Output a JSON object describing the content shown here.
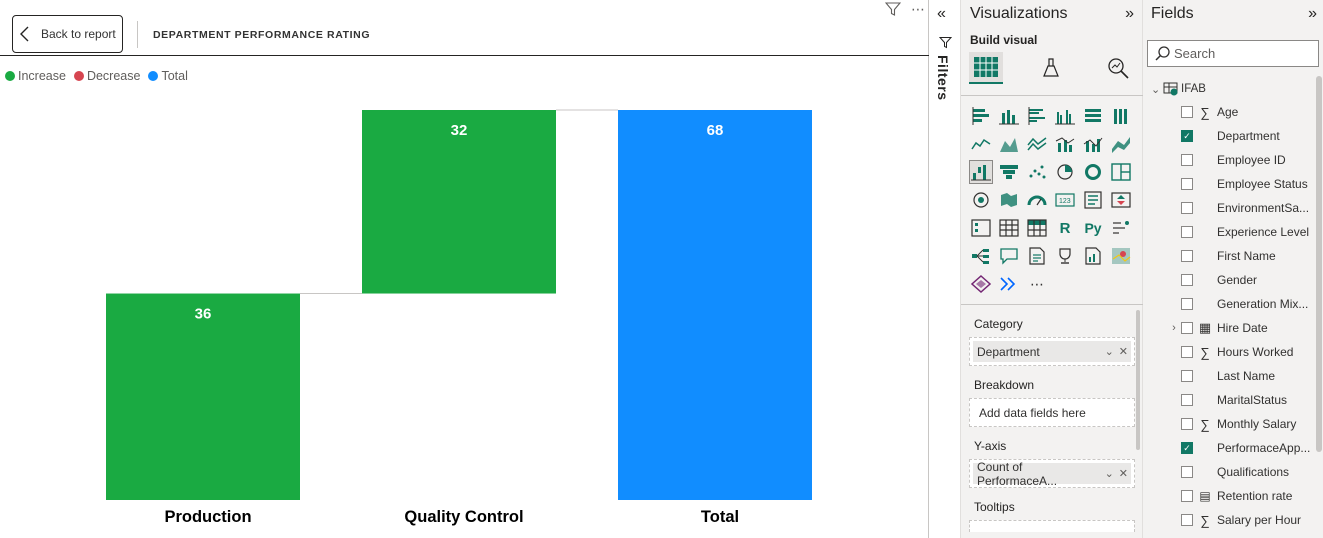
{
  "report": {
    "back_label": "Back to report",
    "visual_title": "DEPARTMENT PERFORMANCE RATING",
    "filter_icon": "funnel-icon",
    "more_icon": "ellipsis-icon"
  },
  "legend": [
    {
      "label": "Increase",
      "color": "#1aaa42"
    },
    {
      "label": "Decrease",
      "color": "#d64550"
    },
    {
      "label": "Total",
      "color": "#118dff"
    }
  ],
  "chart_data": {
    "type": "bar",
    "categories": [
      "Production",
      "Quality Control",
      "Total"
    ],
    "values": [
      36,
      32,
      68
    ],
    "kinds": [
      "increase",
      "increase",
      "total"
    ],
    "ylim": [
      0,
      68
    ]
  },
  "filters_pane": {
    "label": "Filters",
    "collapse_icon": "double-chevron-left-icon"
  },
  "visualizations": {
    "title": "Visualizations",
    "expand_icon": "double-chevron-right-icon",
    "build_label": "Build visual",
    "more_icon": "ellipsis-icon",
    "wells": [
      {
        "label": "Category",
        "field": "Department"
      },
      {
        "label": "Breakdown",
        "placeholder": "Add data fields here"
      },
      {
        "label": "Y-axis",
        "field": "Count of PerformaceA..."
      },
      {
        "label": "Tooltips"
      }
    ]
  },
  "fields_pane": {
    "title": "Fields",
    "expand_icon": "double-chevron-right-icon",
    "search_placeholder": "Search",
    "table": "IFAB",
    "items": [
      {
        "name": "Age",
        "sigma": true,
        "checked": false
      },
      {
        "name": "Department",
        "sigma": false,
        "checked": true
      },
      {
        "name": "Employee ID",
        "sigma": false,
        "checked": false
      },
      {
        "name": "Employee Status",
        "sigma": false,
        "checked": false
      },
      {
        "name": "EnvironmentSa...",
        "sigma": false,
        "checked": false
      },
      {
        "name": "Experience Level",
        "sigma": false,
        "checked": false
      },
      {
        "name": "First Name",
        "sigma": false,
        "checked": false
      },
      {
        "name": "Gender",
        "sigma": false,
        "checked": false
      },
      {
        "name": "Generation Mix...",
        "sigma": false,
        "checked": false
      },
      {
        "name": "Hire Date",
        "sigma": false,
        "checked": false,
        "calendar": true,
        "expandable": true
      },
      {
        "name": "Hours Worked",
        "sigma": true,
        "checked": false
      },
      {
        "name": "Last Name",
        "sigma": false,
        "checked": false
      },
      {
        "name": "MaritalStatus",
        "sigma": false,
        "checked": false
      },
      {
        "name": "Monthly Salary",
        "sigma": true,
        "checked": false
      },
      {
        "name": "PerformaceApp...",
        "sigma": false,
        "checked": true
      },
      {
        "name": "Qualifications",
        "sigma": false,
        "checked": false
      },
      {
        "name": "Retention rate",
        "sigma": false,
        "checked": false,
        "calc": true
      },
      {
        "name": "Salary per Hour",
        "sigma": true,
        "checked": false
      }
    ]
  }
}
